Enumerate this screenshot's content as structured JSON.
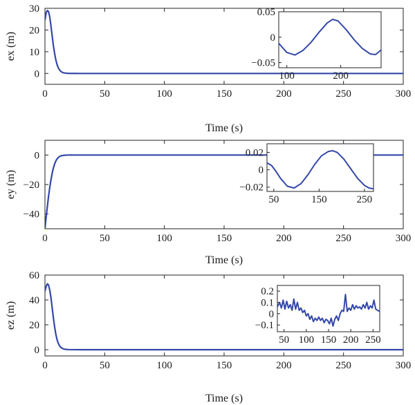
{
  "chart_data": [
    {
      "type": "line",
      "ylabel": "ex (m)",
      "xlabel": "Time (s)",
      "xlim": [
        0,
        300
      ],
      "ylim": [
        -5,
        30
      ],
      "xticks": [
        "0",
        "50",
        "100",
        "150",
        "200",
        "250",
        "300"
      ],
      "yticks": [
        "0",
        "10",
        "20",
        "30"
      ],
      "line_color": "#3347a8",
      "series": [
        {
          "x": [
            0,
            1,
            2,
            3,
            4,
            5,
            6,
            7,
            8,
            9,
            10,
            11,
            12,
            13,
            14,
            15,
            16,
            18,
            20,
            25,
            30,
            40,
            60,
            100,
            150,
            200,
            250,
            300
          ],
          "values": [
            24.5,
            28,
            29,
            28.5,
            26,
            22,
            17.5,
            13,
            9.5,
            6.5,
            4.3,
            2.8,
            1.8,
            1.1,
            0.7,
            0.4,
            0.25,
            0.1,
            0.05,
            0.02,
            0,
            0,
            0,
            0,
            0,
            0,
            0,
            0
          ]
        }
      ],
      "inset": {
        "xlim": [
          85,
          275
        ],
        "ylim": [
          -0.06,
          0.05
        ],
        "xticks": [
          "100",
          "200"
        ],
        "yticks": [
          "0.05",
          "0",
          "−0.05"
        ],
        "series": [
          {
            "x": [
              85,
              100,
              115,
              130,
              145,
              160,
              175,
              185,
              195,
              210,
              225,
              240,
              255,
              265,
              275
            ],
            "values": [
              -0.012,
              -0.03,
              -0.035,
              -0.026,
              -0.01,
              0.01,
              0.028,
              0.035,
              0.032,
              0.015,
              -0.005,
              -0.022,
              -0.033,
              -0.034,
              -0.025
            ]
          }
        ]
      }
    },
    {
      "type": "line",
      "ylabel": "ey (m)",
      "xlabel": "Time (s)",
      "xlim": [
        0,
        300
      ],
      "ylim": [
        -50,
        10
      ],
      "xticks": [
        "0",
        "50",
        "100",
        "150",
        "200",
        "250",
        "300"
      ],
      "yticks": [
        "0",
        "−20",
        "−40"
      ],
      "line_color": "#3347a8",
      "series": [
        {
          "x": [
            0,
            1,
            2,
            3,
            4,
            5,
            6,
            7,
            8,
            9,
            10,
            11,
            12,
            13,
            14,
            16,
            18,
            20,
            25,
            30,
            40,
            60,
            100,
            150,
            200,
            250,
            300
          ],
          "values": [
            -50,
            -42,
            -35,
            -28,
            -22,
            -17,
            -12.5,
            -9,
            -6.2,
            -4.2,
            -2.8,
            -1.8,
            -1.1,
            -0.7,
            -0.4,
            -0.15,
            -0.05,
            0,
            0,
            0,
            0,
            0,
            0,
            0,
            0,
            0,
            0
          ]
        }
      ],
      "inset": {
        "xlim": [
          35,
          270
        ],
        "ylim": [
          -0.025,
          0.03
        ],
        "xticks": [
          "50",
          "150",
          "250"
        ],
        "yticks": [
          "0.02",
          "0",
          "−0.02"
        ],
        "series": [
          {
            "x": [
              35,
              45,
              55,
              65,
              80,
              95,
              110,
              125,
              140,
              155,
              170,
              180,
              190,
              205,
              220,
              235,
              250,
              260,
              270
            ],
            "values": [
              0.008,
              0.005,
              -0.002,
              -0.01,
              -0.019,
              -0.021,
              -0.016,
              -0.006,
              0.006,
              0.016,
              0.021,
              0.022,
              0.02,
              0.012,
              0.001,
              -0.01,
              -0.018,
              -0.021,
              -0.022
            ]
          }
        ]
      }
    },
    {
      "type": "line",
      "ylabel": "ez (m)",
      "xlabel": "Time (s)",
      "xlim": [
        0,
        300
      ],
      "ylim": [
        -5,
        60
      ],
      "xticks": [
        "0",
        "50",
        "100",
        "150",
        "200",
        "250",
        "300"
      ],
      "yticks": [
        "0",
        "20",
        "40",
        "60"
      ],
      "line_color": "#3347a8",
      "series": [
        {
          "x": [
            0,
            1,
            2,
            3,
            4,
            5,
            6,
            7,
            8,
            9,
            10,
            11,
            12,
            13,
            14,
            15,
            16,
            18,
            20,
            25,
            30,
            40,
            60,
            100,
            150,
            200,
            250,
            300
          ],
          "values": [
            47,
            51,
            53,
            52,
            48,
            42,
            34,
            26,
            19,
            13,
            8.5,
            5.5,
            3.5,
            2.2,
            1.4,
            0.9,
            0.5,
            0.2,
            0.1,
            0.03,
            0,
            0,
            0,
            0,
            0,
            0,
            0,
            0
          ]
        }
      ],
      "inset": {
        "xlim": [
          35,
          265
        ],
        "ylim": [
          -0.16,
          0.25
        ],
        "xticks": [
          "50",
          "100",
          "150",
          "200",
          "250"
        ],
        "yticks": [
          "0.2",
          "0.1",
          "0",
          "−0.1"
        ],
        "series": [
          {
            "x": [
              35,
              40,
              44,
              48,
              52,
              56,
              60,
              64,
              68,
              72,
              76,
              80,
              84,
              88,
              92,
              96,
              100,
              104,
              108,
              112,
              116,
              120,
              124,
              128,
              132,
              136,
              140,
              144,
              148,
              152,
              156,
              160,
              164,
              168,
              172,
              176,
              180,
              184,
              188,
              192,
              196,
              200,
              204,
              208,
              212,
              216,
              220,
              224,
              228,
              232,
              236,
              240,
              244,
              248,
              252,
              256,
              260,
              265
            ],
            "values": [
              0.06,
              0.1,
              0.05,
              0.12,
              0.04,
              0.11,
              0.05,
              0.08,
              0.03,
              0.13,
              0.04,
              0.1,
              0.03,
              0.05,
              0.01,
              0.03,
              -0.02,
              0.0,
              -0.05,
              -0.02,
              -0.07,
              -0.04,
              -0.06,
              -0.03,
              -0.06,
              -0.04,
              -0.08,
              -0.05,
              -0.06,
              -0.09,
              -0.04,
              -0.11,
              -0.05,
              -0.02,
              -0.06,
              0.0,
              0.03,
              0.02,
              0.17,
              0.02,
              0.05,
              0.03,
              0.08,
              0.04,
              0.07,
              0.05,
              0.06,
              0.04,
              0.08,
              0.05,
              0.1,
              0.04,
              0.07,
              0.05,
              0.12,
              0.04,
              0.03,
              0.02
            ]
          }
        ]
      }
    }
  ]
}
